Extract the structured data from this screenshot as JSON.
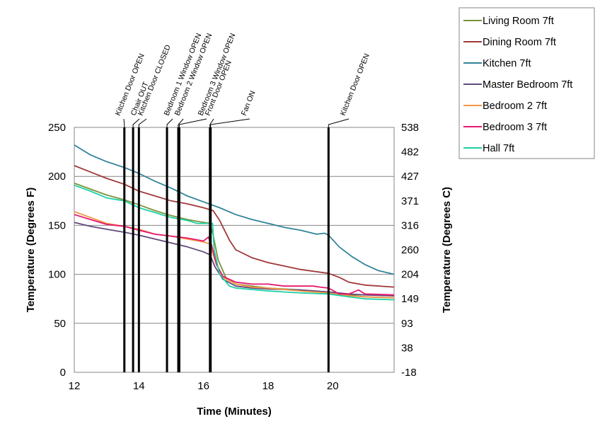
{
  "chart_data": {
    "type": "line",
    "title": "",
    "xlabel": "Time (Minutes)",
    "ylabel": "Temperature (Degrees F)",
    "ylabel_right": "Temperature (Degrees C)",
    "xlim": [
      12,
      21.9
    ],
    "ylim": [
      0,
      250
    ],
    "xticks": [
      12,
      14,
      16,
      18,
      20
    ],
    "yticks": [
      0,
      50,
      100,
      150,
      200,
      250
    ],
    "yticks_right": [
      "-18",
      "38",
      "93",
      "149",
      "204",
      "260",
      "316",
      "371",
      "427",
      "482",
      "538"
    ],
    "grid": "horizontal",
    "legend_position": "top-right, outside plot",
    "events": [
      {
        "label": "Kitchen Door OPEN",
        "x": 13.55
      },
      {
        "label": "Chair OUT",
        "x": 13.82
      },
      {
        "label": "Kitchen Door CLOSED",
        "x": 14.0
      },
      {
        "label": "Bedroom 1 Window OPEN",
        "x": 14.87
      },
      {
        "label": "Bedroom 2 Window OPEN",
        "x": 15.22
      },
      {
        "label": "Bedroom 3 Window OPEN",
        "x": 15.25
      },
      {
        "label": "Front Door OPEN",
        "x": 16.2
      },
      {
        "label": "Fan ON",
        "x": 16.22
      },
      {
        "label": "Kitchen Door OPEN",
        "x": 19.87
      }
    ],
    "series": [
      {
        "name": "Living Room 7ft",
        "color": "#77933c",
        "points": [
          [
            12,
            193
          ],
          [
            13,
            181
          ],
          [
            13.55,
            176
          ],
          [
            14,
            171
          ],
          [
            14.5,
            165
          ],
          [
            15,
            160
          ],
          [
            15.5,
            156
          ],
          [
            16,
            153
          ],
          [
            16.2,
            152
          ],
          [
            16.3,
            140
          ],
          [
            16.45,
            115
          ],
          [
            16.7,
            96
          ],
          [
            17,
            90
          ],
          [
            18,
            86
          ],
          [
            19,
            84
          ],
          [
            19.87,
            82
          ],
          [
            20.5,
            79
          ],
          [
            21,
            77
          ],
          [
            21.9,
            76
          ]
        ]
      },
      {
        "name": "Dining Room 7ft",
        "color": "#a0393a",
        "points": [
          [
            12,
            211
          ],
          [
            13,
            198
          ],
          [
            13.55,
            192
          ],
          [
            14,
            185
          ],
          [
            14.5,
            180
          ],
          [
            15,
            175
          ],
          [
            15.5,
            172
          ],
          [
            16,
            168
          ],
          [
            16.3,
            165
          ],
          [
            16.5,
            155
          ],
          [
            16.8,
            135
          ],
          [
            17,
            125
          ],
          [
            17.5,
            117
          ],
          [
            18,
            112
          ],
          [
            19,
            105
          ],
          [
            19.87,
            101
          ],
          [
            20.2,
            97
          ],
          [
            20.5,
            92
          ],
          [
            21,
            89
          ],
          [
            21.9,
            87
          ]
        ]
      },
      {
        "name": "Kitchen 7ft",
        "color": "#31849b",
        "points": [
          [
            12,
            232
          ],
          [
            12.5,
            222
          ],
          [
            13,
            215
          ],
          [
            13.55,
            209
          ],
          [
            14,
            203
          ],
          [
            14.5,
            195
          ],
          [
            15,
            188
          ],
          [
            15.5,
            180
          ],
          [
            16,
            174
          ],
          [
            16.5,
            168
          ],
          [
            17,
            161
          ],
          [
            17.5,
            156
          ],
          [
            18,
            152
          ],
          [
            18.5,
            148
          ],
          [
            19,
            145
          ],
          [
            19.5,
            141
          ],
          [
            19.75,
            142
          ],
          [
            19.87,
            140
          ],
          [
            20.2,
            128
          ],
          [
            20.6,
            118
          ],
          [
            21,
            110
          ],
          [
            21.4,
            104
          ],
          [
            21.9,
            100
          ]
        ]
      },
      {
        "name": "Master Bedroom 7ft",
        "color": "#604a7b",
        "points": [
          [
            12,
            153
          ],
          [
            12.5,
            149
          ],
          [
            13,
            146
          ],
          [
            13.55,
            143
          ],
          [
            14,
            140
          ],
          [
            14.5,
            136
          ],
          [
            15,
            132
          ],
          [
            15.5,
            128
          ],
          [
            16,
            123
          ],
          [
            16.2,
            120
          ],
          [
            16.35,
            108
          ],
          [
            16.6,
            95
          ],
          [
            17,
            88
          ],
          [
            17.5,
            86
          ],
          [
            18,
            85
          ],
          [
            19,
            84
          ],
          [
            19.87,
            82
          ],
          [
            20.5,
            80
          ],
          [
            21,
            79
          ],
          [
            21.9,
            78
          ]
        ]
      },
      {
        "name": "Bedroom 2 7ft",
        "color": "#f79646",
        "points": [
          [
            12,
            164
          ],
          [
            12.5,
            158
          ],
          [
            13,
            152
          ],
          [
            13.55,
            149
          ],
          [
            14,
            146
          ],
          [
            14.5,
            141
          ],
          [
            15,
            139
          ],
          [
            15.5,
            136
          ],
          [
            16,
            133
          ],
          [
            16.2,
            131
          ],
          [
            16.35,
            115
          ],
          [
            16.6,
            97
          ],
          [
            17,
            90
          ],
          [
            17.5,
            87
          ],
          [
            18,
            86
          ],
          [
            19,
            83
          ],
          [
            19.87,
            81
          ],
          [
            20.5,
            78
          ],
          [
            21,
            77
          ],
          [
            21.9,
            76
          ]
        ]
      },
      {
        "name": "Bedroom 3 7ft",
        "color": "#e6186f",
        "points": [
          [
            12,
            161
          ],
          [
            12.5,
            156
          ],
          [
            13,
            151
          ],
          [
            13.55,
            149
          ],
          [
            14,
            145
          ],
          [
            14.5,
            141
          ],
          [
            15,
            139
          ],
          [
            15.5,
            137
          ],
          [
            16,
            134
          ],
          [
            16.15,
            138
          ],
          [
            16.25,
            130
          ],
          [
            16.4,
            110
          ],
          [
            16.6,
            98
          ],
          [
            17,
            92
          ],
          [
            17.5,
            90
          ],
          [
            18,
            90
          ],
          [
            18.5,
            88
          ],
          [
            19,
            88
          ],
          [
            19.4,
            88
          ],
          [
            19.6,
            87
          ],
          [
            19.87,
            86
          ],
          [
            20.2,
            80
          ],
          [
            20.5,
            80
          ],
          [
            20.8,
            84
          ],
          [
            21,
            80
          ],
          [
            21.9,
            79
          ]
        ]
      },
      {
        "name": "Hall 7ft",
        "color": "#1bd1a5",
        "points": [
          [
            12,
            191
          ],
          [
            12.5,
            185
          ],
          [
            13,
            178
          ],
          [
            13.55,
            175
          ],
          [
            14,
            168
          ],
          [
            14.5,
            163
          ],
          [
            15,
            158
          ],
          [
            15.5,
            155
          ],
          [
            15.8,
            152
          ],
          [
            16.1,
            152
          ],
          [
            16.28,
            152
          ],
          [
            16.33,
            125
          ],
          [
            16.5,
            100
          ],
          [
            16.8,
            88
          ],
          [
            17,
            86
          ],
          [
            18,
            83
          ],
          [
            19,
            81
          ],
          [
            19.87,
            80
          ],
          [
            20.5,
            77
          ],
          [
            21,
            75
          ],
          [
            21.9,
            74
          ]
        ]
      }
    ]
  }
}
